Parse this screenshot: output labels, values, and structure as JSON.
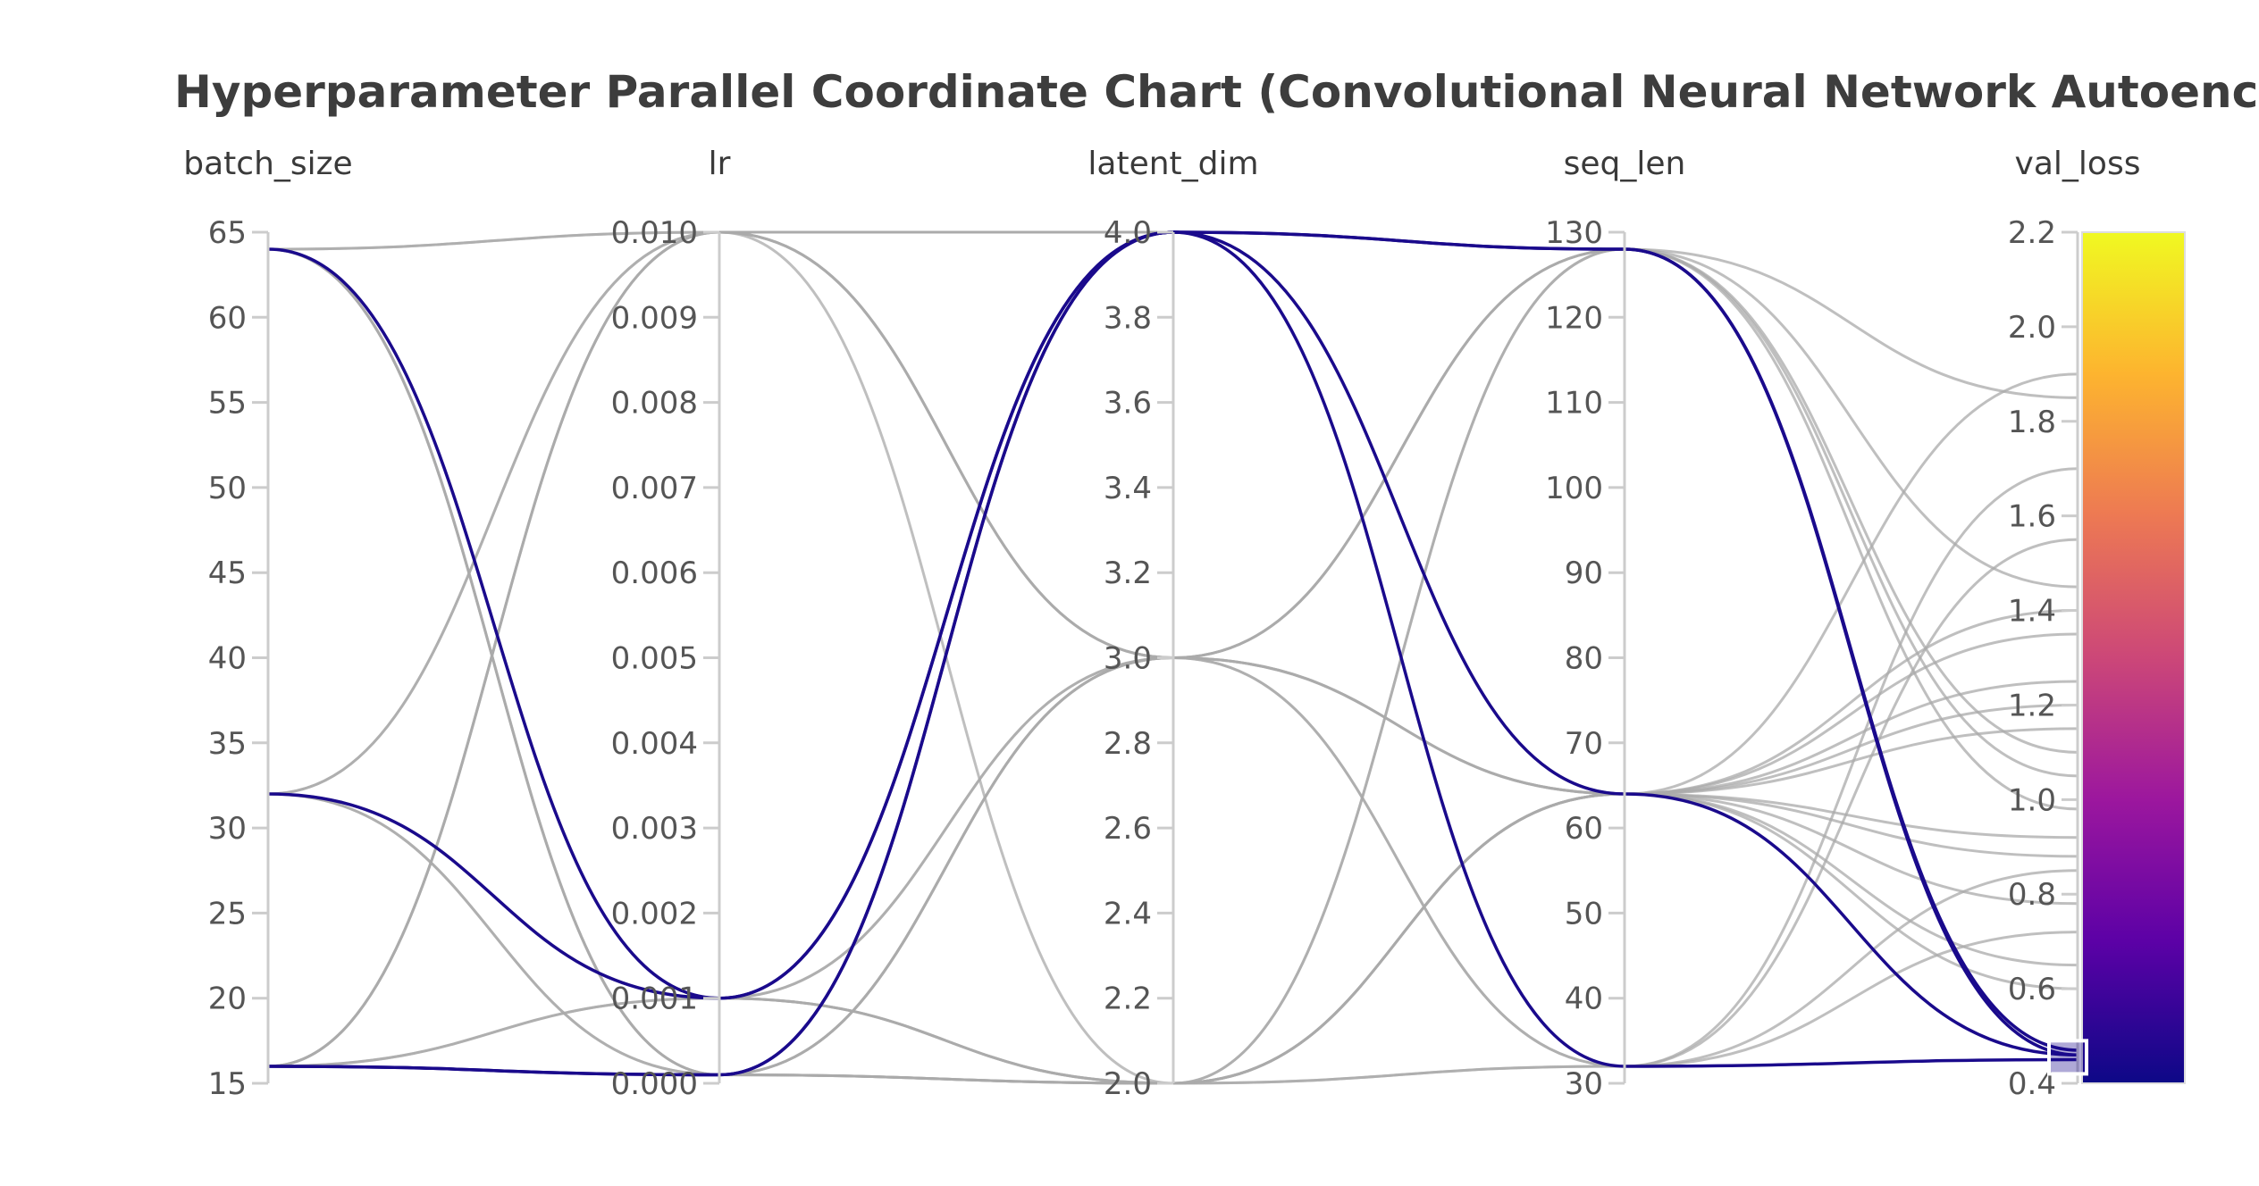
{
  "chart_data": {
    "type": "parallel_coordinates",
    "title": "Hyperparameter Parallel Coordinate Chart (Convolutional Neural Network Autoencoder)",
    "axes": [
      {
        "name": "batch_size",
        "range": [
          15,
          65
        ],
        "ticks": [
          15,
          20,
          25,
          30,
          35,
          40,
          45,
          50,
          55,
          60,
          65
        ],
        "tick_labels": [
          "15",
          "20",
          "25",
          "30",
          "35",
          "40",
          "45",
          "50",
          "55",
          "60",
          "65"
        ]
      },
      {
        "name": "lr",
        "range": [
          0.0,
          0.01
        ],
        "ticks": [
          0.0,
          0.001,
          0.002,
          0.003,
          0.004,
          0.005,
          0.006,
          0.007,
          0.008,
          0.009,
          0.01
        ],
        "tick_labels": [
          "0.000",
          "0.001",
          "0.002",
          "0.003",
          "0.004",
          "0.005",
          "0.006",
          "0.007",
          "0.008",
          "0.009",
          "0.010"
        ]
      },
      {
        "name": "latent_dim",
        "range": [
          2.0,
          4.0
        ],
        "ticks": [
          2.0,
          2.2,
          2.4,
          2.6,
          2.8,
          3.0,
          3.2,
          3.4,
          3.6,
          3.8,
          4.0
        ],
        "tick_labels": [
          "2.0",
          "2.2",
          "2.4",
          "2.6",
          "2.8",
          "3.0",
          "3.2",
          "3.4",
          "3.6",
          "3.8",
          "4.0"
        ]
      },
      {
        "name": "seq_len",
        "range": [
          30,
          130
        ],
        "ticks": [
          30,
          40,
          50,
          60,
          70,
          80,
          90,
          100,
          110,
          120,
          130
        ],
        "tick_labels": [
          "30",
          "40",
          "50",
          "60",
          "70",
          "80",
          "90",
          "100",
          "110",
          "120",
          "130"
        ]
      },
      {
        "name": "val_loss",
        "range": [
          0.4,
          2.2
        ],
        "ticks": [
          0.4,
          0.6,
          0.8,
          1.0,
          1.2,
          1.4,
          1.6,
          1.8,
          2.0,
          2.2
        ],
        "tick_labels": [
          "0.4",
          "0.6",
          "0.8",
          "1.0",
          "1.2",
          "1.4",
          "1.6",
          "1.8",
          "2.0",
          "2.2"
        ]
      }
    ],
    "colorscale": {
      "name": "plasma",
      "range": [
        0.4,
        2.2
      ],
      "colors": [
        "#0d0887",
        "#5c01a6",
        "#9c179e",
        "#cc4778",
        "#ed7953",
        "#fdb42f",
        "#f0f921"
      ]
    },
    "highlight_color": "#1a0a8c",
    "base_line_color": "#aaaaaa",
    "constraint_range_val_loss": [
      0.42,
      0.49
    ],
    "highlighted_runs": [
      [
        64,
        0.001,
        4.0,
        128,
        0.46
      ],
      [
        32,
        0.001,
        4.0,
        32,
        0.45
      ],
      [
        16,
        0.0001,
        4.0,
        128,
        0.47
      ],
      [
        16,
        0.0001,
        4.0,
        64,
        0.46
      ]
    ],
    "runs": [
      [
        64,
        0.01,
        3.0,
        128,
        1.85
      ],
      [
        64,
        0.001,
        2.0,
        64,
        1.2
      ],
      [
        64,
        0.001,
        4.0,
        64,
        0.92
      ],
      [
        64,
        0.0001,
        2.0,
        32,
        1.55
      ],
      [
        64,
        0.0001,
        3.0,
        128,
        1.1
      ],
      [
        64,
        0.0001,
        2.0,
        64,
        0.78
      ],
      [
        32,
        0.01,
        3.0,
        64,
        1.35
      ],
      [
        32,
        0.001,
        3.0,
        32,
        0.85
      ],
      [
        32,
        0.0001,
        2.0,
        64,
        1.9
      ],
      [
        32,
        0.0001,
        3.0,
        64,
        0.65
      ],
      [
        32,
        0.001,
        2.0,
        128,
        1.45
      ],
      [
        16,
        0.01,
        2.0,
        32,
        1.7
      ],
      [
        16,
        0.01,
        3.0,
        128,
        0.98
      ],
      [
        16,
        0.001,
        3.0,
        64,
        0.6
      ],
      [
        16,
        0.001,
        2.0,
        64,
        1.25
      ],
      [
        16,
        0.0001,
        3.0,
        32,
        0.72
      ],
      [
        16,
        0.0001,
        2.0,
        128,
        1.05
      ],
      [
        64,
        0.01,
        4.0,
        64,
        1.4
      ],
      [
        32,
        0.01,
        4.0,
        64,
        1.15
      ],
      [
        16,
        0.01,
        4.0,
        64,
        0.88
      ]
    ]
  }
}
